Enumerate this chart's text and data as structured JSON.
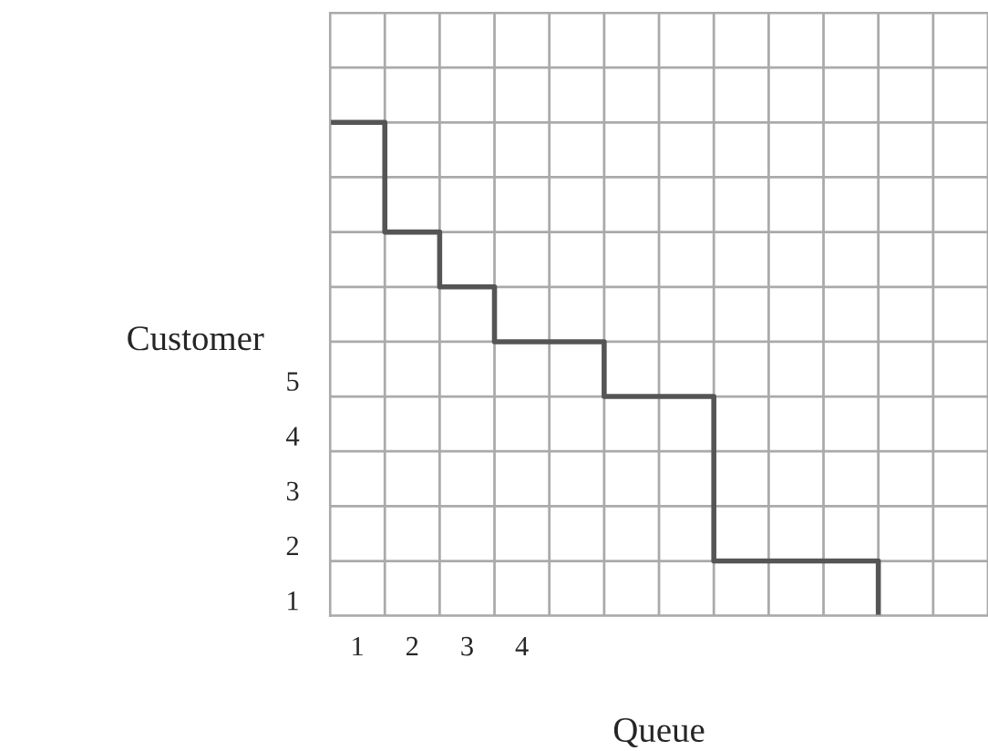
{
  "chart_data": {
    "type": "step",
    "xlabel": "Queue",
    "ylabel": "Customer",
    "x": [
      0.5,
      1.5,
      2.5,
      3.5,
      5.5,
      7.5,
      10.5
    ],
    "series": [
      {
        "color": "#555555",
        "values": [
          10,
          8,
          7,
          6,
          5,
          2,
          1
        ]
      }
    ],
    "xlim": [
      0.5,
      12.5
    ],
    "ylim": [
      1,
      12
    ],
    "xticks": [
      {
        "value": 0.5,
        "label": null
      },
      {
        "value": 1.5,
        "label": null
      },
      {
        "value": 2.5,
        "label": null
      },
      {
        "value": 3.5,
        "label": null
      },
      {
        "value": 4.5,
        "label": null
      },
      {
        "value": 5.5,
        "label": null
      },
      {
        "value": 6.5,
        "label": null
      },
      {
        "value": 7.5,
        "label": null
      },
      {
        "value": 8.5,
        "label": null
      },
      {
        "value": 9.5,
        "label": null
      },
      {
        "value": 10.5,
        "label": null
      },
      {
        "value": 11.5,
        "label": null
      },
      {
        "value": 12.5,
        "label": null
      },
      1,
      2,
      3,
      4
    ],
    "yticks": [
      {
        "value": 6,
        "label": null
      },
      {
        "value": 7,
        "label": null
      },
      {
        "value": 8,
        "label": null
      },
      {
        "value": 9,
        "label": null
      },
      {
        "value": 10,
        "label": null
      },
      {
        "value": 11,
        "label": null
      },
      {
        "value": 12,
        "label": null
      },
      1,
      2,
      3,
      4,
      5
    ],
    "grid": true
  }
}
